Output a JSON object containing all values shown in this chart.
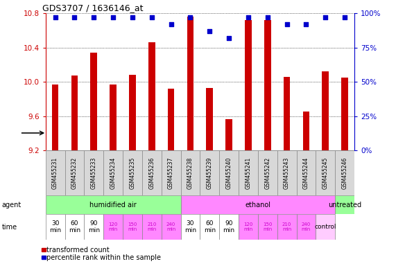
{
  "title": "GDS3707 / 1636146_at",
  "samples": [
    "GSM455231",
    "GSM455232",
    "GSM455233",
    "GSM455234",
    "GSM455235",
    "GSM455236",
    "GSM455237",
    "GSM455238",
    "GSM455239",
    "GSM455240",
    "GSM455241",
    "GSM455242",
    "GSM455243",
    "GSM455244",
    "GSM455245",
    "GSM455246"
  ],
  "bar_values": [
    9.97,
    10.07,
    10.34,
    9.97,
    10.08,
    10.46,
    9.92,
    10.76,
    9.93,
    9.56,
    10.72,
    10.72,
    10.06,
    9.65,
    10.12,
    10.05
  ],
  "percentile_values": [
    97,
    97,
    97,
    97,
    97,
    97,
    92,
    97,
    87,
    82,
    97,
    97,
    92,
    92,
    97,
    97
  ],
  "bar_color": "#cc0000",
  "percentile_color": "#0000cc",
  "ylim_left": [
    9.2,
    10.8
  ],
  "ylim_right": [
    0,
    100
  ],
  "yticks_left": [
    9.2,
    9.6,
    10.0,
    10.4,
    10.8
  ],
  "yticks_right": [
    0,
    25,
    50,
    75,
    100
  ],
  "agent_groups": [
    {
      "label": "humidified air",
      "start": 0,
      "end": 7,
      "color": "#99ff99"
    },
    {
      "label": "ethanol",
      "start": 7,
      "end": 15,
      "color": "#ff88ff"
    },
    {
      "label": "untreated",
      "start": 15,
      "end": 16,
      "color": "#99ff99"
    }
  ],
  "bar_baseline": 9.2,
  "percentile_marker": "s",
  "percentile_size": 4,
  "legend_items": [
    {
      "color": "#cc0000",
      "label": "transformed count"
    },
    {
      "color": "#0000cc",
      "label": "percentile rank within the sample"
    }
  ],
  "sample_bg": "#d8d8d8",
  "time_labels_col": [
    "30\nmin",
    "60\nmin",
    "90\nmin",
    "120\nmin",
    "150\nmin",
    "210\nmin",
    "240\nmin",
    "30\nmin",
    "60\nmin",
    "90\nmin",
    "120\nmin",
    "150\nmin",
    "210\nmin",
    "240\nmin",
    "control"
  ],
  "time_colors_col": [
    "#ffffff",
    "#ffffff",
    "#ffffff",
    "#ff88ff",
    "#ff88ff",
    "#ff88ff",
    "#ff88ff",
    "#ffffff",
    "#ffffff",
    "#ffffff",
    "#ff88ff",
    "#ff88ff",
    "#ff88ff",
    "#ff88ff",
    "#ffccff"
  ],
  "time_small_idx": [
    3,
    4,
    5,
    6,
    10,
    11,
    12,
    13
  ],
  "time_pink_idx": [
    3,
    4,
    5,
    6,
    10,
    11,
    12,
    13
  ]
}
